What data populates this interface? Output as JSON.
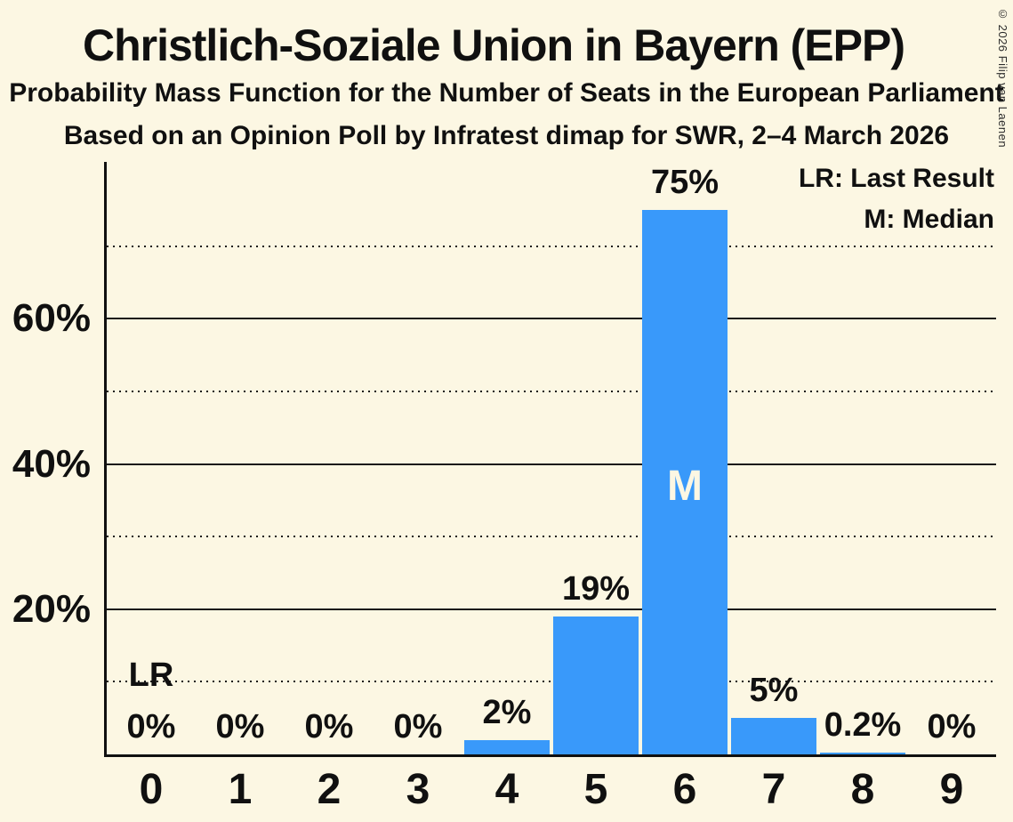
{
  "title": "Christlich-Soziale Union in Bayern (EPP)",
  "subtitle": "Probability Mass Function for the Number of Seats in the European Parliament",
  "source_line": "Based on an Opinion Poll by Infratest dimap for SWR, 2–4 March 2026",
  "copyright": "© 2026 Filip van Laenen",
  "legend": {
    "lr": "LR: Last Result",
    "m": "M: Median"
  },
  "colors": {
    "background": "#FCF7E3",
    "bar": "#3999FA",
    "text": "#101010",
    "grid": "#1A1A1A",
    "median_label": "#FCF7E3"
  },
  "chart_data": {
    "type": "bar",
    "title": "Christlich-Soziale Union in Bayern (EPP)",
    "xlabel": "Number of Seats",
    "ylabel": "Probability",
    "categories": [
      "0",
      "1",
      "2",
      "3",
      "4",
      "5",
      "6",
      "7",
      "8",
      "9"
    ],
    "values": [
      0,
      0,
      0,
      0,
      2,
      19,
      75,
      5,
      0.2,
      0
    ],
    "bar_labels": [
      "0%",
      "0%",
      "0%",
      "0%",
      "2%",
      "19%",
      "75%",
      "5%",
      "0.2%",
      "0%"
    ],
    "ylim": [
      0,
      81.6
    ],
    "y_ticks": [
      {
        "value": 20,
        "label": "20%"
      },
      {
        "value": 40,
        "label": "40%"
      },
      {
        "value": 60,
        "label": "60%"
      }
    ],
    "solid_gridlines": [
      20,
      40,
      60
    ],
    "dotted_gridlines": [
      10,
      30,
      50,
      70
    ],
    "legend_position": "top-right",
    "annotations": [
      {
        "text": "LR",
        "meaning": "Last Result",
        "seat": 0
      },
      {
        "text": "M",
        "meaning": "Median",
        "seat": 6
      }
    ]
  }
}
